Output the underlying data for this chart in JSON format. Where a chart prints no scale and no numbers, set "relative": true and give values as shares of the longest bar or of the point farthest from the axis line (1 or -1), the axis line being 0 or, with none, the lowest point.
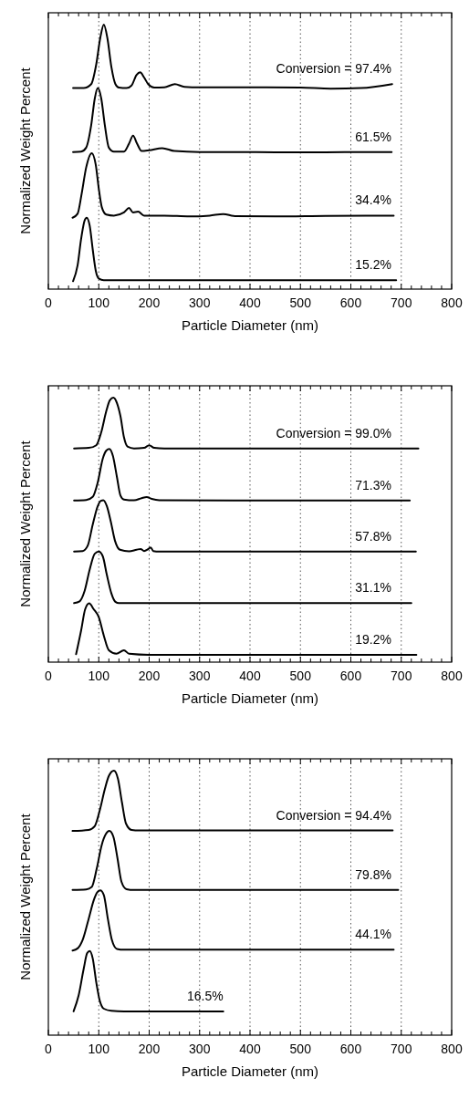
{
  "chart_data": [
    {
      "type": "line",
      "relative": true,
      "xlabel": "Particle Diameter (nm)",
      "ylabel": "Normalized Weight Percent",
      "xlim": [
        0,
        800
      ],
      "xticks": [
        0,
        {
          "value": 20,
          "label": null
        },
        {
          "value": 40,
          "label": null
        },
        {
          "value": 60,
          "label": null
        },
        {
          "value": 80,
          "label": null
        },
        100,
        {
          "value": 120,
          "label": null
        },
        {
          "value": 140,
          "label": null
        },
        {
          "value": 160,
          "label": null
        },
        {
          "value": 180,
          "label": null
        },
        200,
        {
          "value": 220,
          "label": null
        },
        {
          "value": 240,
          "label": null
        },
        {
          "value": 260,
          "label": null
        },
        {
          "value": 280,
          "label": null
        },
        300,
        {
          "value": 320,
          "label": null
        },
        {
          "value": 340,
          "label": null
        },
        {
          "value": 360,
          "label": null
        },
        {
          "value": 380,
          "label": null
        },
        400,
        {
          "value": 420,
          "label": null
        },
        {
          "value": 440,
          "label": null
        },
        {
          "value": 460,
          "label": null
        },
        {
          "value": 480,
          "label": null
        },
        500,
        {
          "value": 520,
          "label": null
        },
        {
          "value": 540,
          "label": null
        },
        {
          "value": 560,
          "label": null
        },
        {
          "value": 580,
          "label": null
        },
        600,
        {
          "value": 620,
          "label": null
        },
        {
          "value": 640,
          "label": null
        },
        {
          "value": 660,
          "label": null
        },
        {
          "value": 680,
          "label": null
        },
        700,
        {
          "value": 720,
          "label": null
        },
        {
          "value": 740,
          "label": null
        },
        {
          "value": 760,
          "label": null
        },
        {
          "value": 780,
          "label": null
        },
        800
      ],
      "grid": "x",
      "marker": "none",
      "line_style": "solid",
      "series": [
        {
          "name": "Conversion = 97.4%",
          "color": "#000000",
          "x": [
            49,
            70,
            85,
            95,
            103,
            110,
            117,
            125,
            133,
            140,
            155,
            165,
            175,
            182,
            190,
            198,
            210,
            230,
            251,
            270,
            300,
            400,
            500,
            560,
            620,
            682
          ],
          "values": [
            0.76,
            0.76,
            0.775,
            0.85,
            0.95,
            1.0,
            0.95,
            0.84,
            0.775,
            0.762,
            0.76,
            0.77,
            0.81,
            0.82,
            0.8,
            0.775,
            0.762,
            0.763,
            0.775,
            0.765,
            0.763,
            0.763,
            0.762,
            0.758,
            0.76,
            0.775
          ]
        },
        {
          "name": "61.5%",
          "color": "#000000",
          "x": [
            49,
            65,
            75,
            85,
            92,
            98,
            105,
            112,
            120,
            130,
            150,
            160,
            168,
            176,
            185,
            200,
            226,
            250,
            300,
            400,
            500,
            600,
            681
          ],
          "values": [
            0.518,
            0.52,
            0.535,
            0.62,
            0.72,
            0.76,
            0.72,
            0.62,
            0.535,
            0.52,
            0.52,
            0.55,
            0.58,
            0.55,
            0.522,
            0.525,
            0.533,
            0.522,
            0.518,
            0.518,
            0.517,
            0.518,
            0.518
          ]
        },
        {
          "name": "34.4%",
          "color": "#000000",
          "x": [
            48,
            58,
            66,
            75,
            86,
            94,
            100,
            106,
            115,
            130,
            150,
            160,
            168,
            178,
            190,
            230,
            280,
            320,
            347,
            370,
            450,
            550,
            685
          ],
          "values": [
            0.27,
            0.285,
            0.36,
            0.46,
            0.514,
            0.47,
            0.38,
            0.31,
            0.282,
            0.278,
            0.29,
            0.307,
            0.29,
            0.293,
            0.278,
            0.278,
            0.275,
            0.278,
            0.284,
            0.276,
            0.275,
            0.277,
            0.278
          ]
        },
        {
          "name": "15.2%",
          "color": "#000000",
          "x": [
            49,
            58,
            65,
            72,
            76,
            82,
            88,
            94,
            100,
            110,
            200,
            400,
            690
          ],
          "values": [
            0.03,
            0.09,
            0.19,
            0.26,
            0.27,
            0.24,
            0.15,
            0.07,
            0.04,
            0.034,
            0.034,
            0.034,
            0.034
          ]
        }
      ]
    },
    {
      "type": "line",
      "relative": true,
      "xlabel": "Particle Diameter (nm)",
      "ylabel": "Normalized Weight Percent",
      "xlim": [
        0,
        800
      ],
      "xticks": [
        0,
        {
          "value": 20,
          "label": null
        },
        {
          "value": 40,
          "label": null
        },
        {
          "value": 60,
          "label": null
        },
        {
          "value": 80,
          "label": null
        },
        100,
        {
          "value": 120,
          "label": null
        },
        {
          "value": 140,
          "label": null
        },
        {
          "value": 160,
          "label": null
        },
        {
          "value": 180,
          "label": null
        },
        200,
        {
          "value": 220,
          "label": null
        },
        {
          "value": 240,
          "label": null
        },
        {
          "value": 260,
          "label": null
        },
        {
          "value": 280,
          "label": null
        },
        300,
        {
          "value": 320,
          "label": null
        },
        {
          "value": 340,
          "label": null
        },
        {
          "value": 360,
          "label": null
        },
        {
          "value": 380,
          "label": null
        },
        400,
        {
          "value": 420,
          "label": null
        },
        {
          "value": 440,
          "label": null
        },
        {
          "value": 460,
          "label": null
        },
        {
          "value": 480,
          "label": null
        },
        500,
        {
          "value": 520,
          "label": null
        },
        {
          "value": 540,
          "label": null
        },
        {
          "value": 560,
          "label": null
        },
        {
          "value": 580,
          "label": null
        },
        600,
        {
          "value": 620,
          "label": null
        },
        {
          "value": 640,
          "label": null
        },
        {
          "value": 660,
          "label": null
        },
        {
          "value": 680,
          "label": null
        },
        700,
        {
          "value": 720,
          "label": null
        },
        {
          "value": 740,
          "label": null
        },
        {
          "value": 760,
          "label": null
        },
        {
          "value": 780,
          "label": null
        },
        800
      ],
      "grid": "x",
      "marker": "none",
      "line_style": "solid",
      "series": [
        {
          "name": "Conversion = 99.0%",
          "color": "#000000",
          "x": [
            51,
            80,
            95,
            105,
            115,
            122,
            129,
            136,
            143,
            150,
            157,
            170,
            190,
            200,
            210,
            230,
            400,
            600,
            734
          ],
          "values": [
            0.808,
            0.81,
            0.82,
            0.87,
            0.95,
            0.99,
            1.0,
            0.98,
            0.93,
            0.85,
            0.815,
            0.808,
            0.81,
            0.82,
            0.81,
            0.808,
            0.808,
            0.808,
            0.808
          ]
        },
        {
          "name": "71.3%",
          "color": "#000000",
          "x": [
            51,
            75,
            88,
            98,
            108,
            115,
            121,
            128,
            136,
            143,
            150,
            170,
            185,
            195,
            205,
            220,
            400,
            600,
            717
          ],
          "values": [
            0.611,
            0.613,
            0.625,
            0.68,
            0.77,
            0.8,
            0.806,
            0.78,
            0.7,
            0.63,
            0.615,
            0.612,
            0.62,
            0.624,
            0.617,
            0.612,
            0.611,
            0.611,
            0.611
          ]
        },
        {
          "name": "57.8%",
          "color": "#000000",
          "x": [
            51,
            68,
            78,
            88,
            98,
            104,
            109,
            116,
            124,
            132,
            142,
            160,
            175,
            183,
            190,
            197,
            203,
            208,
            220,
            400,
            600,
            729
          ],
          "values": [
            0.418,
            0.42,
            0.44,
            0.52,
            0.59,
            0.61,
            0.612,
            0.59,
            0.53,
            0.46,
            0.425,
            0.419,
            0.425,
            0.428,
            0.42,
            0.426,
            0.434,
            0.42,
            0.418,
            0.418,
            0.418,
            0.418
          ]
        },
        {
          "name": "31.1%",
          "color": "#000000",
          "x": [
            51,
            62,
            72,
            82,
            92,
            100,
            108,
            116,
            125,
            133,
            140,
            300,
            500,
            720
          ],
          "values": [
            0.223,
            0.23,
            0.27,
            0.35,
            0.41,
            0.418,
            0.4,
            0.33,
            0.26,
            0.228,
            0.223,
            0.223,
            0.223,
            0.223
          ]
        },
        {
          "name": "19.2%",
          "color": "#000000",
          "x": [
            55,
            65,
            73,
            81,
            90,
            100,
            110,
            120,
            135,
            150,
            160,
            200,
            400,
            600,
            730
          ],
          "values": [
            0.03,
            0.12,
            0.2,
            0.222,
            0.2,
            0.17,
            0.1,
            0.045,
            0.032,
            0.045,
            0.032,
            0.028,
            0.028,
            0.028,
            0.028
          ]
        }
      ]
    },
    {
      "type": "line",
      "relative": true,
      "xlabel": "Particle Diameter (nm)",
      "ylabel": "Normalized Weight Percent",
      "xlim": [
        0,
        800
      ],
      "xticks": [
        0,
        {
          "value": 20,
          "label": null
        },
        {
          "value": 40,
          "label": null
        },
        {
          "value": 60,
          "label": null
        },
        {
          "value": 80,
          "label": null
        },
        100,
        {
          "value": 120,
          "label": null
        },
        {
          "value": 140,
          "label": null
        },
        {
          "value": 160,
          "label": null
        },
        {
          "value": 180,
          "label": null
        },
        200,
        {
          "value": 220,
          "label": null
        },
        {
          "value": 240,
          "label": null
        },
        {
          "value": 260,
          "label": null
        },
        {
          "value": 280,
          "label": null
        },
        300,
        {
          "value": 320,
          "label": null
        },
        {
          "value": 340,
          "label": null
        },
        {
          "value": 360,
          "label": null
        },
        {
          "value": 380,
          "label": null
        },
        400,
        {
          "value": 420,
          "label": null
        },
        {
          "value": 440,
          "label": null
        },
        {
          "value": 460,
          "label": null
        },
        {
          "value": 480,
          "label": null
        },
        500,
        {
          "value": 520,
          "label": null
        },
        {
          "value": 540,
          "label": null
        },
        {
          "value": 560,
          "label": null
        },
        {
          "value": 580,
          "label": null
        },
        600,
        {
          "value": 620,
          "label": null
        },
        {
          "value": 640,
          "label": null
        },
        {
          "value": 660,
          "label": null
        },
        {
          "value": 680,
          "label": null
        },
        700,
        {
          "value": 720,
          "label": null
        },
        {
          "value": 740,
          "label": null
        },
        {
          "value": 760,
          "label": null
        },
        {
          "value": 780,
          "label": null
        },
        800
      ],
      "grid": "x",
      "marker": "none",
      "line_style": "solid",
      "series": [
        {
          "name": "Conversion = 94.4%",
          "color": "#000000",
          "x": [
            48,
            80,
            92,
            102,
            112,
            120,
            130,
            138,
            146,
            154,
            165,
            180,
            400,
            683
          ],
          "values": [
            0.772,
            0.776,
            0.79,
            0.85,
            0.93,
            0.98,
            1.0,
            0.97,
            0.88,
            0.8,
            0.776,
            0.774,
            0.774,
            0.774
          ]
        },
        {
          "name": "79.8%",
          "color": "#000000",
          "x": [
            48,
            75,
            86,
            96,
            106,
            114,
            121,
            129,
            137,
            145,
            155,
            170,
            400,
            694
          ],
          "values": [
            0.549,
            0.551,
            0.56,
            0.63,
            0.72,
            0.76,
            0.772,
            0.75,
            0.67,
            0.58,
            0.552,
            0.549,
            0.549,
            0.549
          ]
        },
        {
          "name": "44.1%",
          "color": "#000000",
          "x": [
            48,
            58,
            68,
            80,
            90,
            97,
            103,
            110,
            118,
            126,
            136,
            150,
            400,
            685
          ],
          "values": [
            0.32,
            0.328,
            0.36,
            0.44,
            0.51,
            0.54,
            0.547,
            0.53,
            0.44,
            0.36,
            0.326,
            0.323,
            0.323,
            0.323
          ]
        },
        {
          "name": "16.5%",
          "color": "#000000",
          "x": [
            50,
            60,
            70,
            77,
            82,
            88,
            95,
            102,
            110,
            125,
            150,
            250,
            347
          ],
          "values": [
            0.09,
            0.15,
            0.25,
            0.31,
            0.318,
            0.29,
            0.2,
            0.13,
            0.1,
            0.092,
            0.09,
            0.09,
            0.09
          ]
        }
      ]
    }
  ]
}
